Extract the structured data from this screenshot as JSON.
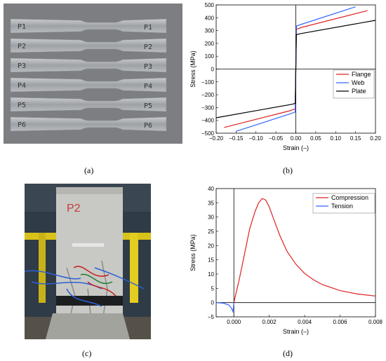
{
  "labels": {
    "a": "(a)",
    "b": "(b)",
    "c": "(c)",
    "d": "(d)"
  },
  "photo_a": {
    "coupon_labels": [
      {
        "left": "P1",
        "right": "P1"
      },
      {
        "left": "P2",
        "right": "P2"
      },
      {
        "left": "P3",
        "right": "P3"
      },
      {
        "left": "P4",
        "right": "P4"
      },
      {
        "left": "P5",
        "right": "P5"
      },
      {
        "left": "P6",
        "right": "P6"
      }
    ]
  },
  "photo_c": {
    "cylinder_label": "P2"
  },
  "colors": {
    "red": "#dd2222",
    "blue": "#3366ff",
    "black": "#000000"
  },
  "chart_data": [
    {
      "type": "line",
      "panel": "b",
      "xlabel": "Strain (–)",
      "ylabel": "Stress (MPa)",
      "xlim": [
        -0.2,
        0.2
      ],
      "ylim": [
        -500,
        500
      ],
      "xticks": [
        -0.2,
        -0.15,
        -0.1,
        -0.05,
        0.0,
        0.05,
        0.1,
        0.15,
        0.2
      ],
      "xtick_labels": [
        "−0.20",
        "−0.15",
        "−0.10",
        "−0.05",
        "0.00",
        "0.05",
        "0.10",
        "0.15",
        "0.20"
      ],
      "yticks": [
        -500,
        -400,
        -300,
        -200,
        -100,
        0,
        100,
        200,
        300,
        400,
        500
      ],
      "ytick_labels": [
        "−500",
        "−400",
        "−300",
        "−200",
        "−100",
        "0",
        "100",
        "200",
        "300",
        "400",
        "500"
      ],
      "legend_position": "right-middle",
      "series": [
        {
          "name": "Flange",
          "color": "#dd2222",
          "x": [
            -0.18,
            -0.015,
            -0.0015,
            0,
            0.0015,
            0.015,
            0.18
          ],
          "y": [
            -455,
            -325,
            -310,
            0,
            310,
            325,
            455
          ]
        },
        {
          "name": "Web",
          "color": "#3366ff",
          "x": [
            -0.15,
            -0.015,
            -0.0016,
            0,
            0.0016,
            0.015,
            0.15
          ],
          "y": [
            -485,
            -350,
            -335,
            0,
            335,
            350,
            485
          ]
        },
        {
          "name": "Plate",
          "color": "#000000",
          "x": [
            -0.2,
            -0.01,
            -0.0013,
            0,
            0.0013,
            0.01,
            0.2
          ],
          "y": [
            -380,
            -275,
            -268,
            0,
            268,
            275,
            380
          ]
        }
      ]
    },
    {
      "type": "line",
      "panel": "d",
      "xlabel": "Strain (–)",
      "ylabel": "Stress (MPa)",
      "xlim": [
        -0.001,
        0.008
      ],
      "ylim": [
        -5,
        40
      ],
      "xticks": [
        0.0,
        0.002,
        0.004,
        0.006,
        0.008
      ],
      "xtick_labels": [
        "0.000",
        "0.002",
        "0.004",
        "0.006",
        "0.008"
      ],
      "yticks": [
        -5,
        0,
        5,
        10,
        15,
        20,
        25,
        30,
        35,
        40
      ],
      "ytick_labels": [
        "−5",
        "0",
        "5",
        "10",
        "15",
        "20",
        "25",
        "30",
        "35",
        "40"
      ],
      "legend_position": "top-right",
      "series": [
        {
          "name": "Compression",
          "color": "#dd2222",
          "x": [
            0,
            0.0003,
            0.0006,
            0.0009,
            0.0012,
            0.0014,
            0.0016,
            0.0018,
            0.002,
            0.0023,
            0.0026,
            0.003,
            0.0035,
            0.004,
            0.0045,
            0.005,
            0.006,
            0.007,
            0.008
          ],
          "y": [
            0,
            8,
            17,
            26,
            32,
            35,
            36.5,
            36,
            33.5,
            28.5,
            23.5,
            18,
            13.5,
            10.2,
            8,
            6.3,
            4.2,
            3.0,
            2.3
          ]
        },
        {
          "name": "Tension",
          "color": "#3366ff",
          "x": [
            -0.001,
            -0.0006,
            -0.0003,
            -0.00015,
            -5e-05,
            0
          ],
          "y": [
            0,
            -0.2,
            -0.8,
            -1.8,
            -3.2,
            0
          ]
        }
      ]
    }
  ]
}
